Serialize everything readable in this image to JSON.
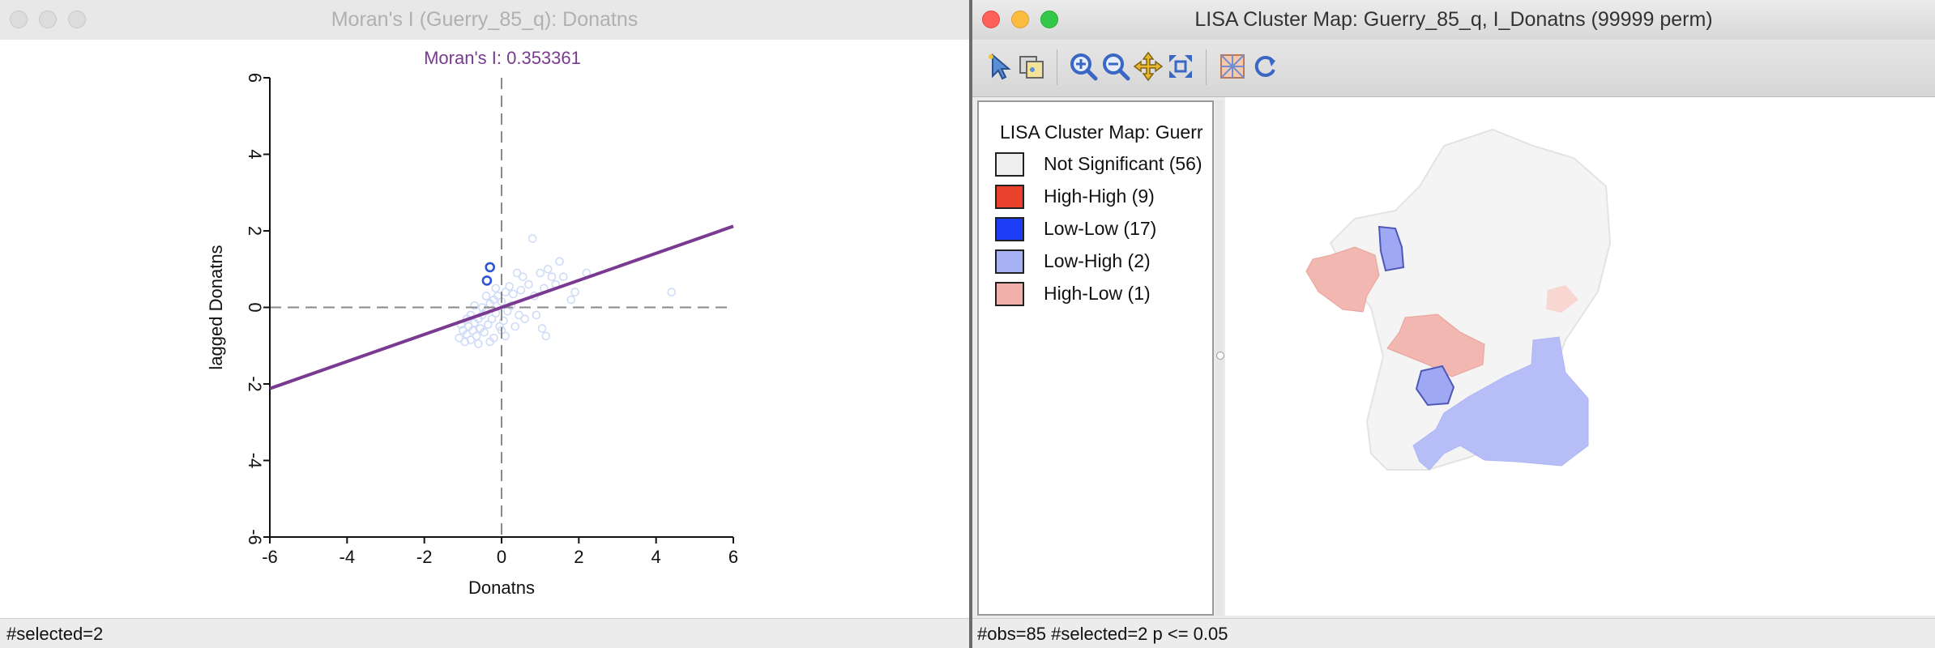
{
  "left_window": {
    "title": "Moran's I (Guerry_85_q): Donatns",
    "status": "#selected=2"
  },
  "right_window": {
    "title": "LISA Cluster Map: Guerry_85_q, I_Donatns (99999 perm)",
    "status": "#obs=85 #selected=2   p <= 0.05",
    "toolbar": {
      "icons": [
        "select-arrow-icon",
        "select-settings-icon",
        "zoom-in-icon",
        "zoom-out-icon",
        "pan-icon",
        "fit-extent-icon",
        "basemap-icon",
        "refresh-icon"
      ]
    },
    "legend": {
      "title": "LISA Cluster Map: Guerr",
      "items": [
        {
          "label": "Not Significant (56)",
          "color": "#eeeeee"
        },
        {
          "label": "High-High (9)",
          "color": "#e8412c"
        },
        {
          "label": "Low-Low (17)",
          "color": "#1c3ff5"
        },
        {
          "label": "Low-High (2)",
          "color": "#a7b2f5"
        },
        {
          "label": "High-Low (1)",
          "color": "#f2b0aa"
        }
      ]
    }
  },
  "chart_data": {
    "type": "scatter",
    "title": "Moran's I: 0.353361",
    "xlabel": "Donatns",
    "ylabel": "lagged Donatns",
    "xlim": [
      -6,
      6
    ],
    "ylim": [
      -6,
      6
    ],
    "xticks": [
      "-6",
      "-4",
      "-2",
      "0",
      "2",
      "4",
      "6"
    ],
    "yticks": [
      "-6",
      "-4",
      "-2",
      "0",
      "2",
      "4",
      "6"
    ],
    "slope": 0.353361,
    "colors": {
      "title": "#7a3a91",
      "regression_line": "#7a3a91",
      "points": "#cfdcf7",
      "selected_points": "#2b55d6"
    },
    "selected": [
      [
        -0.3,
        1.05
      ],
      [
        -0.38,
        0.7
      ]
    ],
    "points": [
      [
        -1.1,
        -0.8
      ],
      [
        -1.0,
        -0.6
      ],
      [
        -0.95,
        -0.9
      ],
      [
        -0.9,
        -0.7
      ],
      [
        -0.85,
        -0.5
      ],
      [
        -0.8,
        -0.85
      ],
      [
        -0.75,
        -0.6
      ],
      [
        -0.7,
        -0.4
      ],
      [
        -0.65,
        -0.75
      ],
      [
        -0.6,
        -0.3
      ],
      [
        -0.55,
        -0.55
      ],
      [
        -0.5,
        -0.2
      ],
      [
        -0.45,
        -0.65
      ],
      [
        -0.4,
        -0.1
      ],
      [
        -0.35,
        -0.45
      ],
      [
        -0.3,
        0.1
      ],
      [
        -0.25,
        -0.3
      ],
      [
        -0.2,
        0.2
      ],
      [
        -0.15,
        -0.15
      ],
      [
        -0.1,
        0.3
      ],
      [
        -0.05,
        -0.5
      ],
      [
        0.0,
        0.15
      ],
      [
        0.05,
        -0.35
      ],
      [
        0.1,
        0.4
      ],
      [
        0.15,
        -0.1
      ],
      [
        0.2,
        0.55
      ],
      [
        0.25,
        0.05
      ],
      [
        0.3,
        0.35
      ],
      [
        0.4,
        0.9
      ],
      [
        0.45,
        -0.2
      ],
      [
        0.5,
        0.45
      ],
      [
        0.55,
        0.8
      ],
      [
        0.6,
        -0.3
      ],
      [
        0.7,
        0.6
      ],
      [
        0.8,
        1.8
      ],
      [
        0.85,
        0.3
      ],
      [
        0.9,
        -0.2
      ],
      [
        1.0,
        0.9
      ],
      [
        1.05,
        -0.55
      ],
      [
        1.1,
        0.5
      ],
      [
        1.15,
        -0.75
      ],
      [
        1.2,
        1.0
      ],
      [
        1.3,
        0.8
      ],
      [
        1.4,
        0.6
      ],
      [
        1.5,
        1.2
      ],
      [
        1.6,
        0.8
      ],
      [
        1.8,
        0.2
      ],
      [
        1.9,
        0.4
      ],
      [
        2.2,
        0.9
      ],
      [
        4.4,
        0.4
      ],
      [
        -0.9,
        -0.3
      ],
      [
        -0.6,
        -0.95
      ],
      [
        -0.5,
        0.0
      ],
      [
        -0.2,
        -0.8
      ],
      [
        0.0,
        -0.6
      ],
      [
        -0.8,
        -0.2
      ],
      [
        -0.3,
        -0.9
      ],
      [
        -0.7,
        0.05
      ],
      [
        -0.4,
        0.3
      ],
      [
        0.1,
        -0.75
      ],
      [
        -1.05,
        -0.45
      ],
      [
        -0.15,
        0.5
      ],
      [
        0.35,
        -0.5
      ]
    ]
  }
}
